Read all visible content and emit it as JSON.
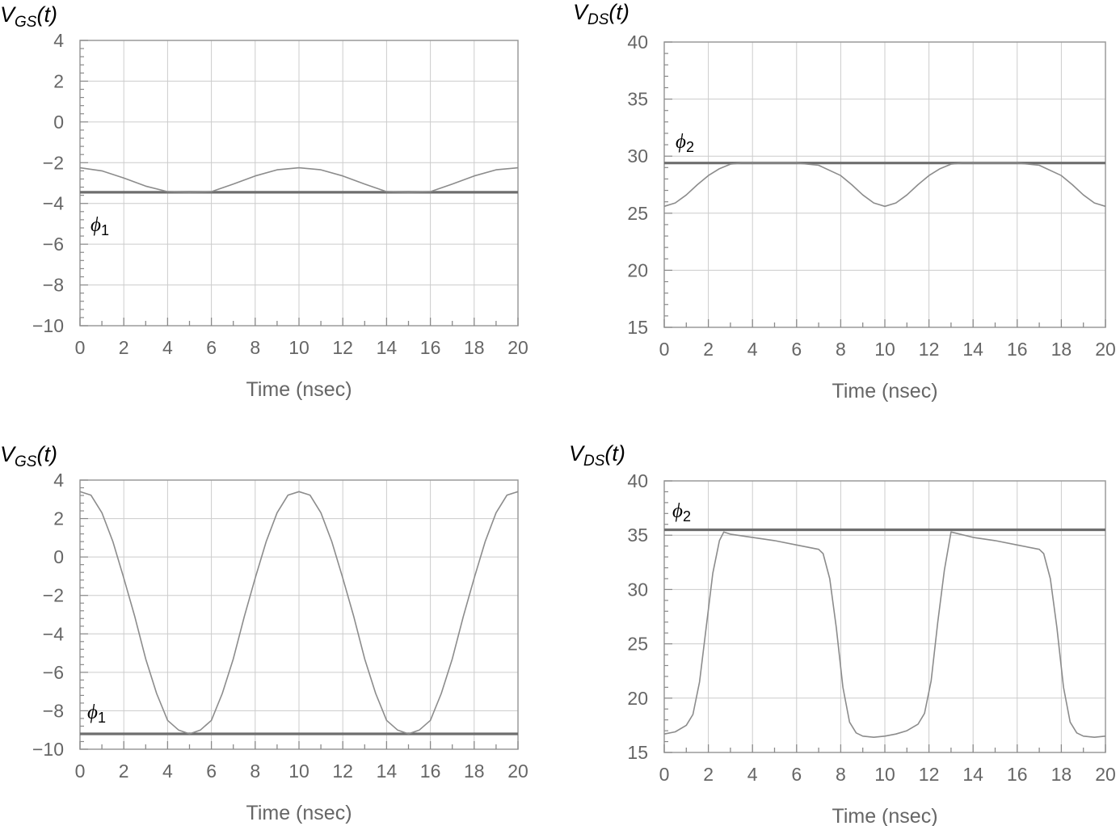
{
  "chart_data": [
    {
      "type": "line",
      "ylabel": {
        "main": "V",
        "sub": "GS",
        "tail": "(t)"
      },
      "xlabel": "Time (nsec)",
      "xlim": [
        0,
        20
      ],
      "ylim": [
        -10,
        4
      ],
      "x_ticks": [
        0,
        2,
        4,
        6,
        8,
        10,
        12,
        14,
        16,
        18,
        20
      ],
      "y_ticks": [
        -10,
        -8,
        -6,
        -4,
        -2,
        0,
        2,
        4
      ],
      "x_tick_labels": [
        "0",
        "2",
        "4",
        "6",
        "8",
        "10",
        "12",
        "14",
        "16",
        "18",
        "20"
      ],
      "y_tick_labels": [
        "−10",
        "−8",
        "−6",
        "−4",
        "−2",
        "0",
        "2",
        "4"
      ],
      "grid": true,
      "reference_line": {
        "label": "ϕ",
        "sub": "1",
        "y": -3.45
      },
      "series": [
        {
          "x": [
            0,
            1,
            2,
            3,
            4,
            5,
            6,
            7,
            8,
            9,
            10,
            11,
            12,
            13,
            14,
            15,
            16,
            17,
            18,
            19,
            20
          ],
          "y": [
            -2.25,
            -2.4,
            -2.75,
            -3.15,
            -3.42,
            -3.45,
            -3.42,
            -3.05,
            -2.65,
            -2.35,
            -2.25,
            -2.35,
            -2.65,
            -3.05,
            -3.42,
            -3.45,
            -3.42,
            -3.05,
            -2.65,
            -2.35,
            -2.25
          ]
        }
      ]
    },
    {
      "type": "line",
      "ylabel": {
        "main": "V",
        "sub": "DS",
        "tail": "(t)"
      },
      "xlabel": "Time (nsec)",
      "xlim": [
        0,
        20
      ],
      "ylim": [
        15,
        40
      ],
      "x_ticks": [
        0,
        2,
        4,
        6,
        8,
        10,
        12,
        14,
        16,
        18,
        20
      ],
      "y_ticks": [
        15,
        20,
        25,
        30,
        35,
        40
      ],
      "x_tick_labels": [
        "0",
        "2",
        "4",
        "6",
        "8",
        "10",
        "12",
        "14",
        "16",
        "18",
        "20"
      ],
      "y_tick_labels": [
        "15",
        "20",
        "25",
        "30",
        "35",
        "40"
      ],
      "grid": true,
      "reference_line": {
        "label": "ϕ",
        "sub": "2",
        "y": 29.4
      },
      "series": [
        {
          "x": [
            0,
            0.5,
            1,
            1.5,
            2,
            2.5,
            3,
            3.5,
            4,
            5,
            6,
            7,
            8,
            8.5,
            9,
            9.5,
            10,
            10.5,
            11,
            11.5,
            12,
            12.5,
            13,
            13.5,
            14,
            15,
            16,
            17,
            18,
            18.5,
            19,
            19.5,
            20
          ],
          "y": [
            25.6,
            25.9,
            26.6,
            27.5,
            28.3,
            28.9,
            29.3,
            29.4,
            29.4,
            29.4,
            29.4,
            29.2,
            28.3,
            27.5,
            26.6,
            25.9,
            25.6,
            25.9,
            26.6,
            27.5,
            28.3,
            28.9,
            29.3,
            29.4,
            29.4,
            29.4,
            29.4,
            29.2,
            28.3,
            27.5,
            26.6,
            25.9,
            25.6
          ]
        }
      ]
    },
    {
      "type": "line",
      "ylabel": {
        "main": "V",
        "sub": "GS",
        "tail": "(t)"
      },
      "xlabel": "Time (nsec)",
      "xlim": [
        0,
        20
      ],
      "ylim": [
        -10,
        4
      ],
      "x_ticks": [
        0,
        2,
        4,
        6,
        8,
        10,
        12,
        14,
        16,
        18,
        20
      ],
      "y_ticks": [
        -10,
        -8,
        -6,
        -4,
        -2,
        0,
        2,
        4
      ],
      "x_tick_labels": [
        "0",
        "2",
        "4",
        "6",
        "8",
        "10",
        "12",
        "14",
        "16",
        "18",
        "20"
      ],
      "y_tick_labels": [
        "−10",
        "−8",
        "−6",
        "−4",
        "−2",
        "0",
        "2",
        "4"
      ],
      "grid": true,
      "reference_line": {
        "label": "ϕ",
        "sub": "1",
        "y": -9.2
      },
      "series": [
        {
          "x": [
            0,
            0.5,
            1,
            1.5,
            2,
            2.5,
            3,
            3.5,
            4,
            4.5,
            5,
            5.5,
            6,
            6.5,
            7,
            7.5,
            8,
            8.5,
            9,
            9.5,
            10,
            10.5,
            11,
            11.5,
            12,
            12.5,
            13,
            13.5,
            14,
            14.5,
            15,
            15.5,
            16,
            16.5,
            17,
            17.5,
            18,
            18.5,
            19,
            19.5,
            20
          ],
          "y": [
            3.4,
            3.22,
            2.3,
            0.8,
            -1.1,
            -3.1,
            -5.3,
            -7.1,
            -8.5,
            -9.0,
            -9.2,
            -9.0,
            -8.5,
            -7.1,
            -5.3,
            -3.1,
            -1.1,
            0.8,
            2.3,
            3.22,
            3.4,
            3.22,
            2.3,
            0.8,
            -1.1,
            -3.1,
            -5.3,
            -7.1,
            -8.5,
            -9.0,
            -9.2,
            -9.0,
            -8.5,
            -7.1,
            -5.3,
            -3.1,
            -1.1,
            0.8,
            2.3,
            3.22,
            3.4
          ]
        }
      ]
    },
    {
      "type": "line",
      "ylabel": {
        "main": "V",
        "sub": "DS",
        "tail": "(t)"
      },
      "xlabel": "Time (nsec)",
      "xlim": [
        0,
        20
      ],
      "ylim": [
        15,
        40
      ],
      "x_ticks": [
        0,
        2,
        4,
        6,
        8,
        10,
        12,
        14,
        16,
        18,
        20
      ],
      "y_ticks": [
        15,
        20,
        25,
        30,
        35,
        40
      ],
      "x_tick_labels": [
        "0",
        "2",
        "4",
        "6",
        "8",
        "10",
        "12",
        "14",
        "16",
        "18",
        "20"
      ],
      "y_tick_labels": [
        "15",
        "20",
        "25",
        "30",
        "35",
        "40"
      ],
      "grid": true,
      "reference_line": {
        "label": "ϕ",
        "sub": "2",
        "y": 35.5
      },
      "series": [
        {
          "x": [
            0,
            0.5,
            1,
            1.3,
            1.6,
            1.9,
            2.2,
            2.5,
            2.7,
            3,
            4,
            5,
            6,
            7,
            7.2,
            7.5,
            7.8,
            8.1,
            8.4,
            8.7,
            9,
            9.5,
            10,
            10.5,
            11,
            11.5,
            11.8,
            12.1,
            12.4,
            12.7,
            13,
            14,
            15,
            16,
            17,
            17.2,
            17.5,
            17.8,
            18.1,
            18.4,
            18.7,
            19,
            19.5,
            20
          ],
          "y": [
            16.7,
            16.9,
            17.5,
            18.5,
            21.5,
            26.5,
            31.5,
            34.5,
            35.3,
            35.1,
            34.8,
            34.5,
            34.1,
            33.7,
            33.3,
            31.0,
            26.5,
            21.0,
            17.8,
            16.8,
            16.5,
            16.4,
            16.5,
            16.7,
            17.0,
            17.6,
            18.6,
            21.6,
            27.0,
            31.8,
            35.3,
            34.8,
            34.5,
            34.1,
            33.7,
            33.3,
            31.0,
            26.5,
            21.0,
            17.8,
            16.8,
            16.5,
            16.4,
            16.5
          ]
        }
      ]
    }
  ]
}
